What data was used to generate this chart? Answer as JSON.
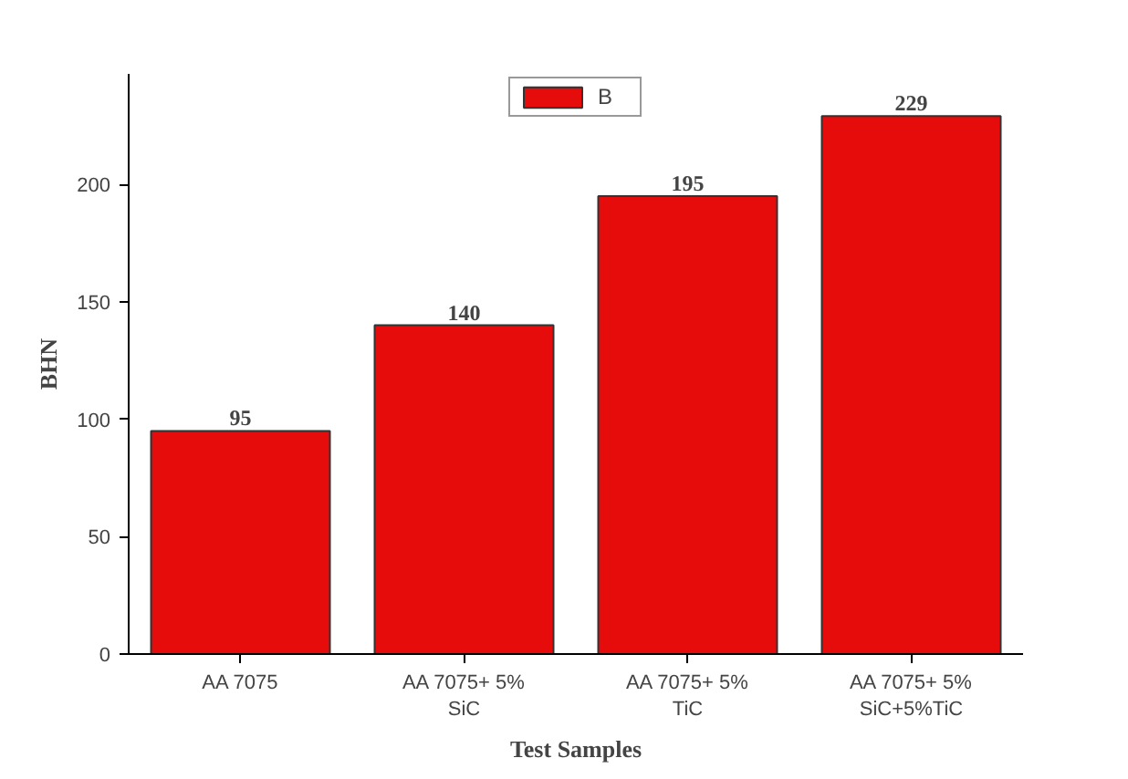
{
  "chart_data": {
    "type": "bar",
    "xlabel": "Test Samples",
    "ylabel": "BHN",
    "categories": [
      "AA 7075",
      "AA 7075+ 5% SiC",
      "AA 7075+ 5% TiC",
      "AA 7075+ 5% SiC+5%TiC"
    ],
    "series": [
      {
        "name": "B",
        "color": "#e60c0c",
        "values": [
          95,
          140,
          195,
          229
        ]
      }
    ],
    "ylim": [
      0,
      247
    ],
    "yticks": [
      0,
      50,
      100,
      150,
      200
    ],
    "data_labels": true,
    "legend": "top",
    "grid": false
  }
}
